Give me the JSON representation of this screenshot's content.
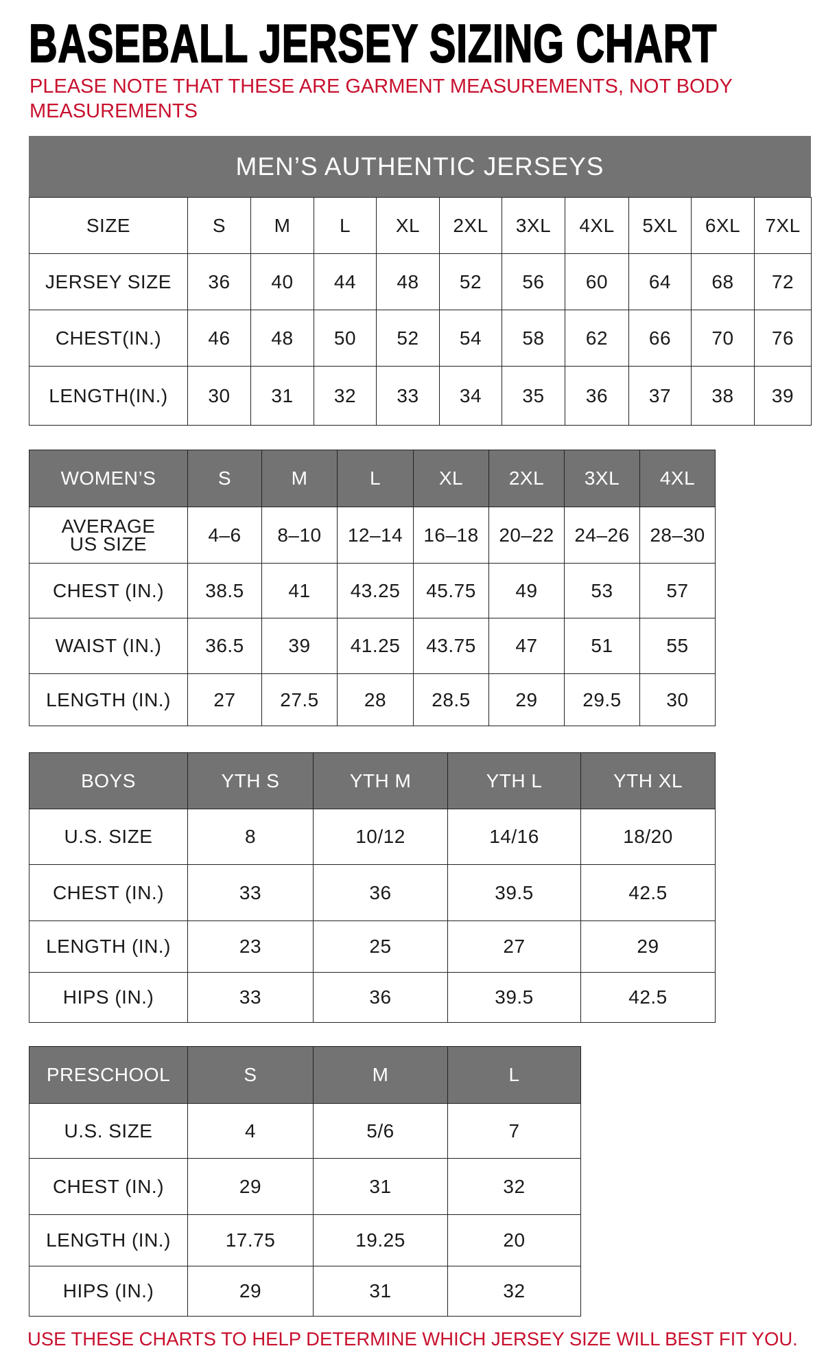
{
  "title": "BASEBALL JERSEY SIZING CHART",
  "note": "PLEASE NOTE THAT THESE ARE GARMENT MEASUREMENTS, NOT BODY MEASUREMENTS",
  "footer": "USE THESE CHARTS TO HELP DETERMINE WHICH JERSEY SIZE WILL BEST FIT YOU.",
  "colors": {
    "header_bg": "#737373",
    "accent_red": "#c8102e"
  },
  "tables": [
    {
      "id": "mens",
      "banner": "MEN’S AUTHENTIC JERSEYS",
      "header_shaded": false,
      "header": [
        "SIZE",
        "S",
        "M",
        "L",
        "XL",
        "2XL",
        "3XL",
        "4XL",
        "5XL",
        "6XL",
        "7XL"
      ],
      "rows": [
        [
          "JERSEY SIZE",
          "36",
          "40",
          "44",
          "48",
          "52",
          "56",
          "60",
          "64",
          "68",
          "72"
        ],
        [
          "CHEST(IN.)",
          "46",
          "48",
          "50",
          "52",
          "54",
          "58",
          "62",
          "66",
          "70",
          "76"
        ],
        [
          "LENGTH(IN.)",
          "30",
          "31",
          "32",
          "33",
          "34",
          "35",
          "36",
          "37",
          "38",
          "39"
        ]
      ]
    },
    {
      "id": "womens",
      "header_shaded": true,
      "header": [
        "WOMEN’S",
        "S",
        "M",
        "L",
        "XL",
        "2XL",
        "3XL",
        "4XL"
      ],
      "rows": [
        [
          "AVERAGE US SIZE",
          "4–6",
          "8–10",
          "12–14",
          "16–18",
          "20–22",
          "24–26",
          "28–30"
        ],
        [
          "CHEST (IN.)",
          "38.5",
          "41",
          "43.25",
          "45.75",
          "49",
          "53",
          "57"
        ],
        [
          "WAIST (IN.)",
          "36.5",
          "39",
          "41.25",
          "43.75",
          "47",
          "51",
          "55"
        ],
        [
          "LENGTH (IN.)",
          "27",
          "27.5",
          "28",
          "28.5",
          "29",
          "29.5",
          "30"
        ]
      ]
    },
    {
      "id": "boys",
      "header_shaded": true,
      "header": [
        "BOYS",
        "YTH S",
        "YTH M",
        "YTH L",
        "YTH XL"
      ],
      "rows": [
        [
          "U.S. SIZE",
          "8",
          "10/12",
          "14/16",
          "18/20"
        ],
        [
          "CHEST (IN.)",
          "33",
          "36",
          "39.5",
          "42.5"
        ],
        [
          "LENGTH (IN.)",
          "23",
          "25",
          "27",
          "29"
        ],
        [
          "HIPS (IN.)",
          "33",
          "36",
          "39.5",
          "42.5"
        ]
      ]
    },
    {
      "id": "preschool",
      "header_shaded": true,
      "header": [
        "PRESCHOOL",
        "S",
        "M",
        "L"
      ],
      "rows": [
        [
          "U.S. SIZE",
          "4",
          "5/6",
          "7"
        ],
        [
          "CHEST (IN.)",
          "29",
          "31",
          "32"
        ],
        [
          "LENGTH (IN.)",
          "17.75",
          "19.25",
          "20"
        ],
        [
          "HIPS (IN.)",
          "29",
          "31",
          "32"
        ]
      ]
    }
  ]
}
